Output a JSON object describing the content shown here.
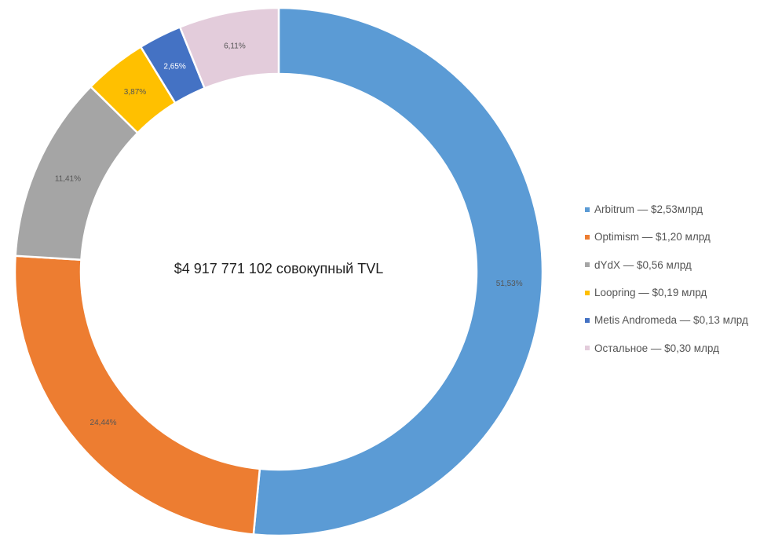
{
  "chart_data": {
    "type": "pie",
    "subtype": "donut",
    "center_label": "$4 917 771 102 совокупный TVL",
    "slices": [
      {
        "name": "Arbitrum",
        "legend": "Arbitrum — $2,53млрд",
        "value": 51.53,
        "label": "51,53%",
        "color": "#5B9BD5",
        "label_color": "#555555"
      },
      {
        "name": "Optimism",
        "legend": "Optimism — $1,20 млрд",
        "value": 24.44,
        "label": "24,44%",
        "color": "#ED7D31",
        "label_color": "#555555"
      },
      {
        "name": "dYdX",
        "legend": "dYdX — $0,56 млрд",
        "value": 11.41,
        "label": "11,41%",
        "color": "#A5A5A5",
        "label_color": "#555555"
      },
      {
        "name": "Loopring",
        "legend": "Loopring — $0,19 млрд",
        "value": 3.87,
        "label": "3,87%",
        "color": "#FFC000",
        "label_color": "#555555"
      },
      {
        "name": "Metis Andromeda",
        "legend": "Metis Andromeda — $0,13 млрд",
        "value": 2.65,
        "label": "2,65%",
        "color": "#4472C4",
        "label_color": "#ffffff"
      },
      {
        "name": "Остальное",
        "legend": "Остальное — $0,30 млрд",
        "value": 6.11,
        "label": "6,11%",
        "color": "#E3CCDB",
        "label_color": "#555555"
      }
    ],
    "legend_position": "right"
  }
}
